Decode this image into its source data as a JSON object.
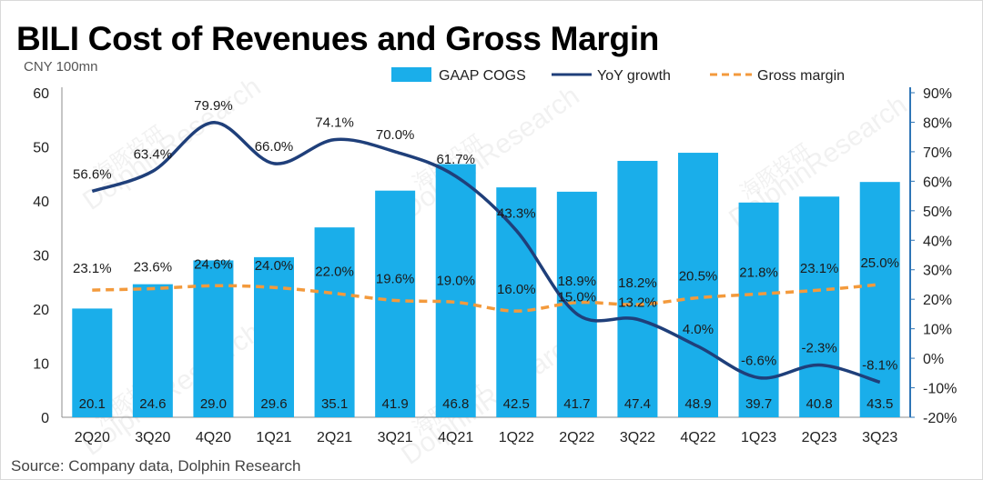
{
  "title": "BILI Cost of Revenues and Gross Margin",
  "unit_label": "CNY 100mn",
  "source": "Source: Company data, Dolphin Research",
  "watermark": {
    "cn": "海豚投研",
    "en": "DolphinResearch"
  },
  "colors": {
    "bar": "#1aaeea",
    "yoy": "#1f3f7a",
    "margin": "#f39a3c",
    "axis": "#2e75b6"
  },
  "chart_data": {
    "type": "bar",
    "categories": [
      "2Q20",
      "3Q20",
      "4Q20",
      "1Q21",
      "2Q21",
      "3Q21",
      "4Q21",
      "1Q22",
      "2Q22",
      "3Q22",
      "4Q22",
      "1Q23",
      "2Q23",
      "3Q23"
    ],
    "series": [
      {
        "name": "GAAP COGS",
        "type": "bar",
        "axis": "left",
        "values": [
          20.1,
          24.6,
          29.0,
          29.6,
          35.1,
          41.9,
          46.8,
          42.5,
          41.7,
          47.4,
          48.9,
          39.7,
          40.8,
          43.5
        ],
        "labels": [
          "20.1",
          "24.6",
          "29.0",
          "29.6",
          "35.1",
          "41.9",
          "46.8",
          "42.5",
          "41.7",
          "47.4",
          "48.9",
          "39.7",
          "40.8",
          "43.5"
        ]
      },
      {
        "name": "YoY growth",
        "type": "line",
        "axis": "right",
        "values": [
          56.6,
          63.4,
          79.9,
          66.0,
          74.1,
          70.0,
          61.7,
          43.3,
          15.0,
          13.2,
          4.0,
          -6.6,
          -2.3,
          -8.1
        ],
        "labels": [
          "56.6%",
          "63.4%",
          "79.9%",
          "66.0%",
          "74.1%",
          "70.0%",
          "61.7%",
          "43.3%",
          "15.0%",
          "13.2%",
          "4.0%",
          "-6.6%",
          "-2.3%",
          "-8.1%"
        ]
      },
      {
        "name": "Gross margin",
        "type": "line",
        "style": "dashed",
        "axis": "right",
        "values": [
          23.1,
          23.6,
          24.6,
          24.0,
          22.0,
          19.6,
          19.0,
          16.0,
          18.9,
          18.2,
          20.5,
          21.8,
          23.1,
          25.0
        ],
        "labels": [
          "23.1%",
          "23.6%",
          "24.6%",
          "24.0%",
          "22.0%",
          "19.6%",
          "19.0%",
          "16.0%",
          "18.9%",
          "18.2%",
          "20.5%",
          "21.8%",
          "23.1%",
          "25.0%"
        ]
      }
    ],
    "y_left": {
      "min": 0,
      "max": 60,
      "ticks": [
        "0",
        "10",
        "20",
        "30",
        "40",
        "50",
        "60"
      ]
    },
    "y_right": {
      "min": -20,
      "max": 90,
      "ticks": [
        "-20%",
        "-10%",
        "0%",
        "10%",
        "20%",
        "30%",
        "40%",
        "50%",
        "60%",
        "70%",
        "80%",
        "90%"
      ]
    },
    "legend": {
      "position": "top"
    },
    "grid": false
  }
}
